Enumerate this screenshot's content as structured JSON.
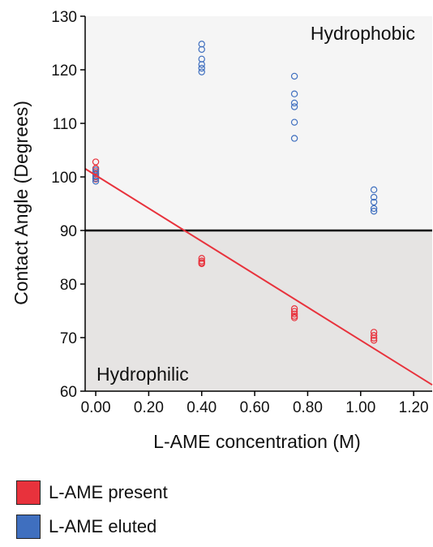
{
  "chart_data": {
    "type": "scatter",
    "xlabel": "L-AME concentration (M)",
    "ylabel": "Contact Angle (Degrees)",
    "xlim": [
      -0.04,
      1.27
    ],
    "ylim": [
      60,
      130
    ],
    "x_ticks": [
      "0.00",
      "0.20",
      "0.40",
      "0.60",
      "0.80",
      "1.00",
      "1.20"
    ],
    "x_tick_values": [
      0,
      0.2,
      0.4,
      0.6,
      0.8,
      1.0,
      1.2
    ],
    "y_ticks": [
      "60",
      "70",
      "80",
      "90",
      "100",
      "110",
      "120",
      "130"
    ],
    "y_tick_values": [
      60,
      70,
      80,
      90,
      100,
      110,
      120,
      130
    ],
    "threshold": 90,
    "regions": [
      {
        "label": "Hydrophobic",
        "from": 90,
        "to": 130,
        "color": "#f5f5f5"
      },
      {
        "label": "Hydrophilic",
        "from": 60,
        "to": 90,
        "color": "#e6e4e3"
      }
    ],
    "series": [
      {
        "name": "L-AME present",
        "color": "#e8323c",
        "points": [
          [
            0,
            102.8
          ],
          [
            0,
            101.6
          ],
          [
            0,
            101.0
          ],
          [
            0,
            100.5
          ],
          [
            0,
            100.0
          ],
          [
            0,
            99.6
          ],
          [
            0.4,
            84.8
          ],
          [
            0.4,
            84.3
          ],
          [
            0.4,
            84.0
          ],
          [
            0.4,
            83.8
          ],
          [
            0.75,
            75.4
          ],
          [
            0.75,
            74.9
          ],
          [
            0.75,
            74.4
          ],
          [
            0.75,
            74.0
          ],
          [
            0.75,
            73.7
          ],
          [
            1.05,
            71.0
          ],
          [
            1.05,
            70.4
          ],
          [
            1.05,
            69.9
          ],
          [
            1.05,
            69.5
          ]
        ]
      },
      {
        "name": "L-AME eluted",
        "color": "#3f6fbf",
        "points": [
          [
            0,
            101.3
          ],
          [
            0,
            100.7
          ],
          [
            0,
            100.2
          ],
          [
            0,
            99.7
          ],
          [
            0,
            99.2
          ],
          [
            0.4,
            124.8
          ],
          [
            0.4,
            123.8
          ],
          [
            0.4,
            122.0
          ],
          [
            0.4,
            121.0
          ],
          [
            0.4,
            120.3
          ],
          [
            0.4,
            119.6
          ],
          [
            0.75,
            118.8
          ],
          [
            0.75,
            115.5
          ],
          [
            0.75,
            113.8
          ],
          [
            0.75,
            113.1
          ],
          [
            0.75,
            110.2
          ],
          [
            0.75,
            107.2
          ],
          [
            1.05,
            97.6
          ],
          [
            1.05,
            96.2
          ],
          [
            1.05,
            95.3
          ],
          [
            1.05,
            94.1
          ],
          [
            1.05,
            93.6
          ]
        ]
      }
    ],
    "trendline": {
      "series": "L-AME present",
      "color": "#e8323c",
      "intercept": 100.3,
      "slope": -30.8
    },
    "grid": false,
    "legend_position": "bottom-left"
  }
}
